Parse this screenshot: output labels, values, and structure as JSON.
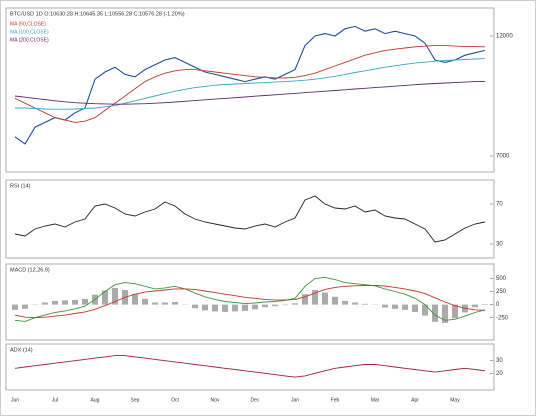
{
  "chart_data": [
    {
      "type": "line",
      "title": "BTC/USD 1D O:10630.28 H:10645.35 L:10556.28 C:10576.28 (-1.20%)",
      "ylim": [
        6500,
        13000
      ],
      "yticks": [
        12000,
        7000
      ],
      "series": [
        {
          "color": "#1f4e9c",
          "values": [
            7800,
            7500,
            8200,
            8400,
            8600,
            8500,
            8800,
            9000,
            10200,
            10500,
            10700,
            10400,
            10300,
            10600,
            10800,
            11000,
            11100,
            10900,
            10700,
            10500,
            10400,
            10300,
            10200,
            10100,
            10200,
            10300,
            10200,
            10400,
            10600,
            11600,
            12000,
            12100,
            12000,
            12300,
            12400,
            12200,
            12300,
            12100,
            12200,
            12100,
            12000,
            11700,
            11000,
            10900,
            11000,
            11200,
            11300,
            11400
          ]
        },
        {
          "name": "MA (50,CLOSE)",
          "color": "#c0392b",
          "values": [
            9400,
            9200,
            9000,
            8800,
            8600,
            8500,
            8400,
            8450,
            8600,
            8900,
            9200,
            9500,
            9800,
            10100,
            10300,
            10450,
            10550,
            10600,
            10600,
            10550,
            10500,
            10450,
            10400,
            10350,
            10300,
            10280,
            10260,
            10250,
            10280,
            10350,
            10450,
            10600,
            10750,
            10900,
            11050,
            11200,
            11300,
            11400,
            11450,
            11500,
            11550,
            11580,
            11600,
            11600,
            11580,
            11560,
            11560,
            11550
          ]
        },
        {
          "name": "MA (100,CLOSE)",
          "color": "#3aa6c9",
          "values": [
            9000,
            9000,
            8980,
            8960,
            8950,
            8950,
            8960,
            8980,
            9000,
            9050,
            9100,
            9200,
            9300,
            9400,
            9500,
            9600,
            9700,
            9780,
            9850,
            9900,
            9950,
            9980,
            10000,
            10020,
            10040,
            10060,
            10080,
            10100,
            10130,
            10160,
            10200,
            10260,
            10320,
            10400,
            10480,
            10550,
            10620,
            10700,
            10760,
            10820,
            10870,
            10910,
            10950,
            10980,
            11000,
            11020,
            11040,
            11060
          ]
        },
        {
          "name": "MA (200,CLOSE)",
          "color": "#5b2a6e",
          "values": [
            9500,
            9450,
            9400,
            9350,
            9300,
            9260,
            9220,
            9200,
            9180,
            9170,
            9160,
            9160,
            9170,
            9180,
            9200,
            9220,
            9250,
            9280,
            9310,
            9340,
            9370,
            9400,
            9430,
            9460,
            9490,
            9520,
            9550,
            9580,
            9610,
            9640,
            9670,
            9700,
            9730,
            9760,
            9790,
            9820,
            9850,
            9880,
            9910,
            9940,
            9970,
            10000,
            10020,
            10040,
            10060,
            10080,
            10100,
            10110
          ]
        }
      ]
    },
    {
      "type": "line",
      "title": "RSI (14)",
      "ylim": [
        20,
        90
      ],
      "yticks": [
        70,
        30
      ],
      "series": [
        {
          "color": "#222222",
          "values": [
            40,
            38,
            45,
            48,
            50,
            47,
            52,
            55,
            68,
            70,
            66,
            60,
            58,
            62,
            65,
            72,
            68,
            60,
            55,
            52,
            50,
            48,
            46,
            45,
            48,
            50,
            47,
            52,
            56,
            74,
            78,
            70,
            66,
            65,
            68,
            62,
            64,
            58,
            56,
            55,
            50,
            45,
            32,
            34,
            40,
            46,
            50,
            52
          ]
        }
      ]
    },
    {
      "type": "line",
      "title": "MACD (12,26,9)",
      "ylim": [
        -600,
        700
      ],
      "yticks": [
        500,
        250,
        0,
        -250
      ],
      "series": [
        {
          "color": "#aaaaaa",
          "style": "bar",
          "values": [
            -100,
            -80,
            0,
            40,
            70,
            80,
            90,
            110,
            190,
            270,
            320,
            280,
            200,
            110,
            40,
            40,
            50,
            0,
            -70,
            -110,
            -130,
            -140,
            -130,
            -120,
            -90,
            -50,
            -30,
            -10,
            25,
            200,
            280,
            230,
            150,
            70,
            40,
            15,
            -5,
            -55,
            -80,
            -100,
            -140,
            -210,
            -330,
            -350,
            -260,
            -150,
            -50,
            10
          ]
        },
        {
          "color": "#3a9a3a",
          "values": [
            -300,
            -320,
            -250,
            -200,
            -150,
            -120,
            -80,
            -30,
            100,
            250,
            380,
            420,
            400,
            350,
            300,
            320,
            350,
            300,
            220,
            150,
            100,
            60,
            40,
            20,
            30,
            50,
            60,
            80,
            120,
            350,
            500,
            520,
            480,
            420,
            400,
            380,
            360,
            300,
            250,
            200,
            120,
            0,
            -200,
            -300,
            -280,
            -220,
            -150,
            -100
          ]
        },
        {
          "color": "#c0392b",
          "values": [
            -200,
            -240,
            -250,
            -240,
            -220,
            -200,
            -170,
            -140,
            -90,
            -20,
            60,
            140,
            200,
            240,
            260,
            280,
            300,
            300,
            290,
            260,
            230,
            200,
            170,
            140,
            120,
            100,
            90,
            90,
            95,
            150,
            220,
            290,
            330,
            350,
            360,
            365,
            365,
            355,
            330,
            300,
            260,
            210,
            130,
            50,
            -20,
            -70,
            -100,
            -110
          ]
        }
      ]
    },
    {
      "type": "line",
      "title": "ADX (14)",
      "ylim": [
        10,
        40
      ],
      "yticks": [
        30,
        20
      ],
      "categories": [
        "Jun",
        null,
        null,
        null,
        "Jul",
        null,
        null,
        null,
        "Aug",
        null,
        null,
        null,
        "Sep",
        null,
        null,
        null,
        "Oct",
        null,
        null,
        null,
        "Nov",
        null,
        null,
        null,
        "Dec",
        null,
        null,
        null,
        "Jan",
        null,
        null,
        null,
        "Feb",
        null,
        null,
        null,
        "Mar",
        null,
        null,
        null,
        "Apr",
        null,
        null,
        null,
        "May",
        null,
        null,
        null
      ],
      "series": [
        {
          "color": "#a0203a",
          "values": [
            24,
            25,
            26,
            27,
            28,
            29,
            30,
            31,
            32,
            33,
            34,
            34,
            33,
            32,
            31,
            30,
            29,
            28,
            27,
            26,
            25,
            24,
            23,
            22,
            21,
            20,
            19,
            18,
            17,
            18,
            20,
            22,
            24,
            25,
            26,
            27,
            27,
            26,
            25,
            24,
            23,
            22,
            21,
            22,
            23,
            24,
            23,
            22
          ]
        }
      ]
    }
  ]
}
